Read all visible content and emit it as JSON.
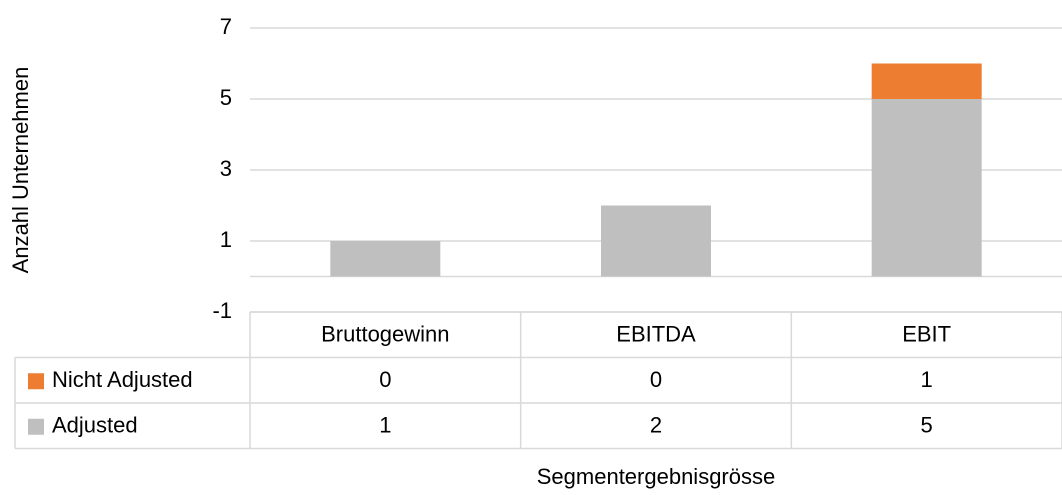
{
  "chart_data": {
    "type": "stacked_bar",
    "y_axis_label": "Anzahl Unternehmen",
    "x_axis_label": "Segmentergebnisgrösse",
    "categories": [
      "Bruttogewinn",
      "EBITDA",
      "EBIT"
    ],
    "series": [
      {
        "name": "Nicht Adjusted",
        "color": "#ed7d31",
        "values": [
          0,
          0,
          1
        ]
      },
      {
        "name": "Adjusted",
        "color": "#bfbfbf",
        "values": [
          1,
          2,
          5
        ]
      }
    ],
    "ylim": [
      -1,
      7
    ],
    "yticks": [
      -1,
      1,
      3,
      5,
      7
    ],
    "grid": true,
    "data_table": true
  }
}
